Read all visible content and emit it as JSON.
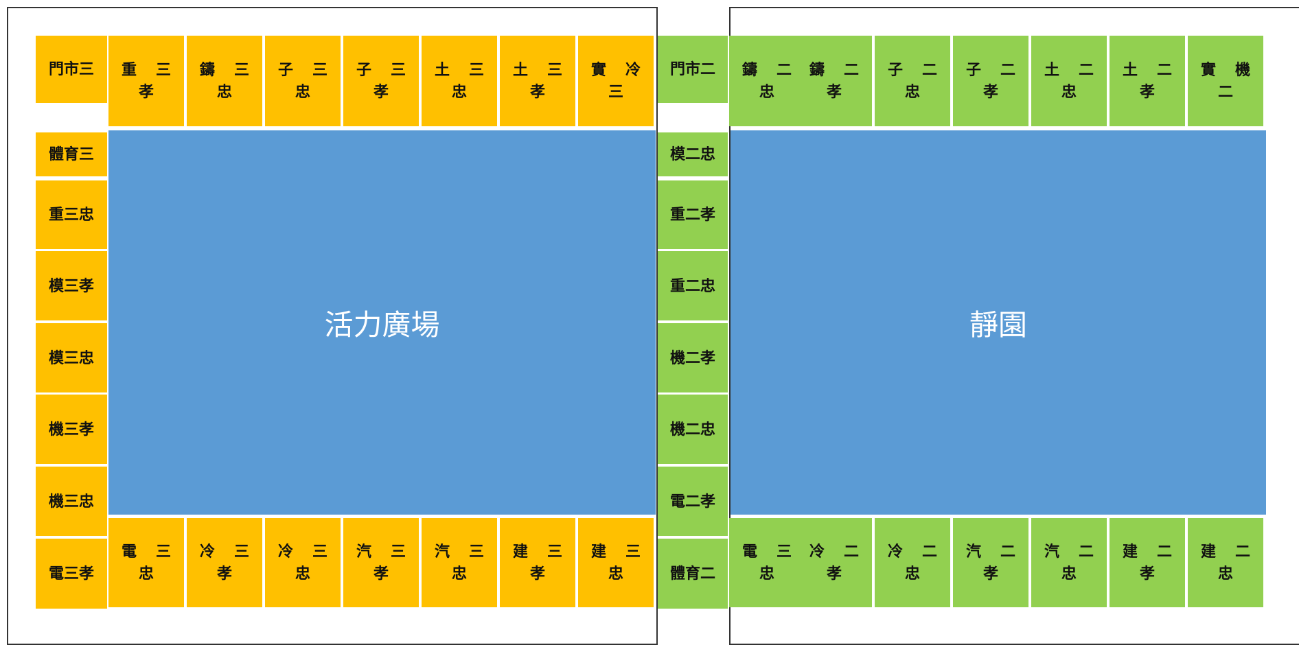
{
  "left_block": {
    "top_row": [
      "門市三",
      "重三孝",
      "鑄三忠",
      "子三忠",
      "子三孝",
      "土三忠",
      "土三孝",
      "實冷三"
    ],
    "side_col": [
      "體育三",
      "重三忠",
      "模三孝",
      "模三忠",
      "機三孝",
      "機三忠",
      "電三孝"
    ],
    "bottom_row": [
      "電三忠",
      "冷三孝",
      "冷三忠",
      "汽三孝",
      "汽三忠",
      "建三孝",
      "建三忠"
    ],
    "field_label": "活力廣場",
    "color": "#FFC000"
  },
  "right_block": {
    "top_row": [
      "門市二",
      "鑄二忠",
      "鑄二孝",
      "子二忠",
      "子二孝",
      "土二忠",
      "土二孝",
      "實機二"
    ],
    "side_col": [
      "模二忠",
      "重二孝",
      "重二忠",
      "機二孝",
      "機二忠",
      "電二孝",
      "體育二"
    ],
    "bottom_row": [
      "電三忠",
      "冷二孝",
      "冷二忠",
      "汽二孝",
      "汽二忠",
      "建二孝",
      "建二忠"
    ],
    "field_label": "靜園",
    "color": "#92D050"
  },
  "field_color": "#5B9BD5"
}
